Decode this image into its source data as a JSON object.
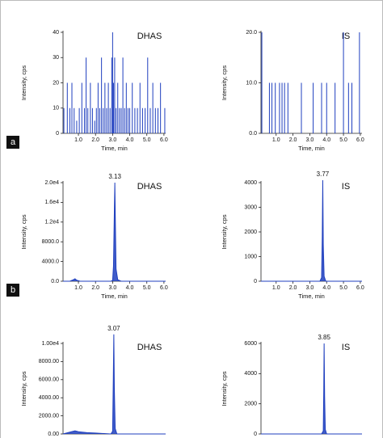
{
  "chart_data": [
    {
      "type": "stem",
      "label": "DHAS",
      "panel_letter": "a",
      "xlabel": "Time, min",
      "ylabel": "Intensity, cps",
      "color": "#1f3fbf",
      "x": [
        0.15,
        0.35,
        0.5,
        0.62,
        0.75,
        0.9,
        1.05,
        1.2,
        1.35,
        1.45,
        1.55,
        1.7,
        1.82,
        1.95,
        2.05,
        2.15,
        2.25,
        2.35,
        2.45,
        2.55,
        2.65,
        2.75,
        2.85,
        2.95,
        3.0,
        3.05,
        3.12,
        3.2,
        3.3,
        3.4,
        3.5,
        3.6,
        3.7,
        3.8,
        3.9,
        4.0,
        4.15,
        4.3,
        4.45,
        4.6,
        4.75,
        4.9,
        5.05,
        5.2,
        5.35,
        5.5,
        5.65,
        5.8,
        6.05
      ],
      "values": [
        10,
        20,
        10,
        20,
        10,
        5,
        10,
        20,
        10,
        30,
        10,
        20,
        10,
        5,
        10,
        20,
        10,
        30,
        10,
        20,
        10,
        20,
        10,
        30,
        40,
        20,
        30,
        10,
        20,
        10,
        10,
        30,
        10,
        20,
        10,
        10,
        20,
        10,
        10,
        20,
        10,
        10,
        30,
        10,
        20,
        10,
        10,
        20,
        10
      ],
      "xlim": [
        0.1,
        6.1
      ],
      "ylim": [
        0,
        40
      ],
      "yticks": [
        0,
        10,
        20,
        30,
        40
      ],
      "xticks": [
        {
          "value": 1,
          "label": "1.0"
        },
        {
          "value": 2,
          "label": "2.0"
        },
        {
          "value": 3,
          "label": "3.0"
        },
        {
          "value": 4,
          "label": "4.0"
        },
        {
          "value": 5,
          "label": "5.0"
        },
        {
          "value": 6,
          "label": "6.0"
        }
      ]
    },
    {
      "type": "stem",
      "label": "IS",
      "xlabel": "Time, min",
      "ylabel": "Intensity, cps",
      "color": "#1f3fbf",
      "x": [
        0.15,
        0.6,
        0.75,
        0.95,
        1.2,
        1.35,
        1.5,
        1.7,
        2.5,
        3.2,
        3.7,
        4.0,
        4.5,
        5.0,
        5.3,
        5.5,
        5.95
      ],
      "values": [
        20,
        10,
        10,
        10,
        10,
        10,
        10,
        10,
        10,
        10,
        10,
        10,
        10,
        20,
        10,
        10,
        20
      ],
      "xlim": [
        0.1,
        6.1
      ],
      "ylim": [
        0,
        20
      ],
      "yticks": [
        {
          "value": 0,
          "label": "0.0"
        },
        {
          "value": 10,
          "label": "10.0"
        },
        {
          "value": 20,
          "label": "20.0"
        }
      ],
      "xticks": [
        {
          "value": 1,
          "label": "1.0"
        },
        {
          "value": 2,
          "label": "2.0"
        },
        {
          "value": 3,
          "label": "3.0"
        },
        {
          "value": 4,
          "label": "4.0"
        },
        {
          "value": 5,
          "label": "5.0"
        },
        {
          "value": 6,
          "label": "6.0"
        }
      ]
    },
    {
      "type": "line",
      "label": "DHAS",
      "panel_letter": "b",
      "xlabel": "Time, min",
      "ylabel": "Intensity, cps",
      "color": "#1f3fbf",
      "peak": 3.13,
      "x": [
        0.1,
        0.5,
        0.7,
        0.8,
        0.9,
        1.1,
        2.9,
        3.0,
        3.05,
        3.1,
        3.13,
        3.16,
        3.2,
        3.3,
        3.5,
        6.1
      ],
      "values": [
        0,
        0,
        300,
        500,
        200,
        0,
        0,
        200,
        3000,
        14000,
        20000,
        12000,
        2500,
        300,
        0,
        0
      ],
      "xlim": [
        0.1,
        6.1
      ],
      "ylim": [
        0,
        20000
      ],
      "yticks": [
        {
          "value": 0,
          "label": "0.0"
        },
        {
          "value": 4000,
          "label": "4000.0"
        },
        {
          "value": 8000,
          "label": "8000.0"
        },
        {
          "value": 12000,
          "label": "1.2e4"
        },
        {
          "value": 16000,
          "label": "1.6e4"
        },
        {
          "value": 20000,
          "label": "2.0e4"
        }
      ],
      "xticks": [
        {
          "value": 1,
          "label": "1.0"
        },
        {
          "value": 2,
          "label": "2.0"
        },
        {
          "value": 3,
          "label": "3.0"
        },
        {
          "value": 4,
          "label": "4.0"
        },
        {
          "value": 5,
          "label": "5.0"
        },
        {
          "value": 6,
          "label": "6.0"
        }
      ]
    },
    {
      "type": "line",
      "label": "IS",
      "xlabel": "Time, min",
      "ylabel": "Intensity, cps",
      "color": "#1f3fbf",
      "peak": 3.77,
      "x": [
        0.1,
        3.6,
        3.7,
        3.74,
        3.77,
        3.8,
        3.85,
        3.95,
        6.1
      ],
      "values": [
        0,
        0,
        150,
        1800,
        4100,
        1500,
        200,
        0,
        0
      ],
      "xlim": [
        0.1,
        6.1
      ],
      "ylim": [
        0,
        4000
      ],
      "yticks": [
        0,
        1000,
        2000,
        3000,
        4000
      ],
      "xticks": [
        {
          "value": 1,
          "label": "1.0"
        },
        {
          "value": 2,
          "label": "2.0"
        },
        {
          "value": 3,
          "label": "3.0"
        },
        {
          "value": 4,
          "label": "4.0"
        },
        {
          "value": 5,
          "label": "5.0"
        },
        {
          "value": 6,
          "label": "6.0"
        }
      ]
    },
    {
      "type": "line",
      "label": "DHAS",
      "ylabel": "Intensity, cps",
      "color": "#1f3fbf",
      "peak": 3.07,
      "x": [
        0.1,
        0.5,
        0.8,
        1.0,
        1.5,
        2.0,
        2.9,
        3.0,
        3.04,
        3.07,
        3.1,
        3.15,
        3.25,
        6.1
      ],
      "values": [
        0,
        200,
        350,
        250,
        150,
        100,
        0,
        300,
        6000,
        11000,
        5000,
        600,
        0,
        0
      ],
      "xlim": [
        0.1,
        6.1
      ],
      "ylim": [
        0,
        10000
      ],
      "yticks": [
        {
          "value": 0,
          "label": "0.00"
        },
        {
          "value": 2000,
          "label": "2000.00"
        },
        {
          "value": 4000,
          "label": "4000.00"
        },
        {
          "value": 6000,
          "label": "6000.00"
        },
        {
          "value": 8000,
          "label": "8000.00"
        },
        {
          "value": 10000,
          "label": "1.00e4"
        }
      ]
    },
    {
      "type": "line",
      "label": "IS",
      "ylabel": "Intensity, cps",
      "color": "#1f3fbf",
      "peak": 3.85,
      "x": [
        0.1,
        3.7,
        3.8,
        3.83,
        3.85,
        3.88,
        3.92,
        4.0,
        6.1
      ],
      "values": [
        0,
        0,
        200,
        3000,
        6000,
        2500,
        300,
        0,
        0
      ],
      "xlim": [
        0.1,
        6.1
      ],
      "ylim": [
        0,
        6000
      ],
      "yticks": [
        0,
        2000,
        4000,
        6000
      ]
    }
  ]
}
